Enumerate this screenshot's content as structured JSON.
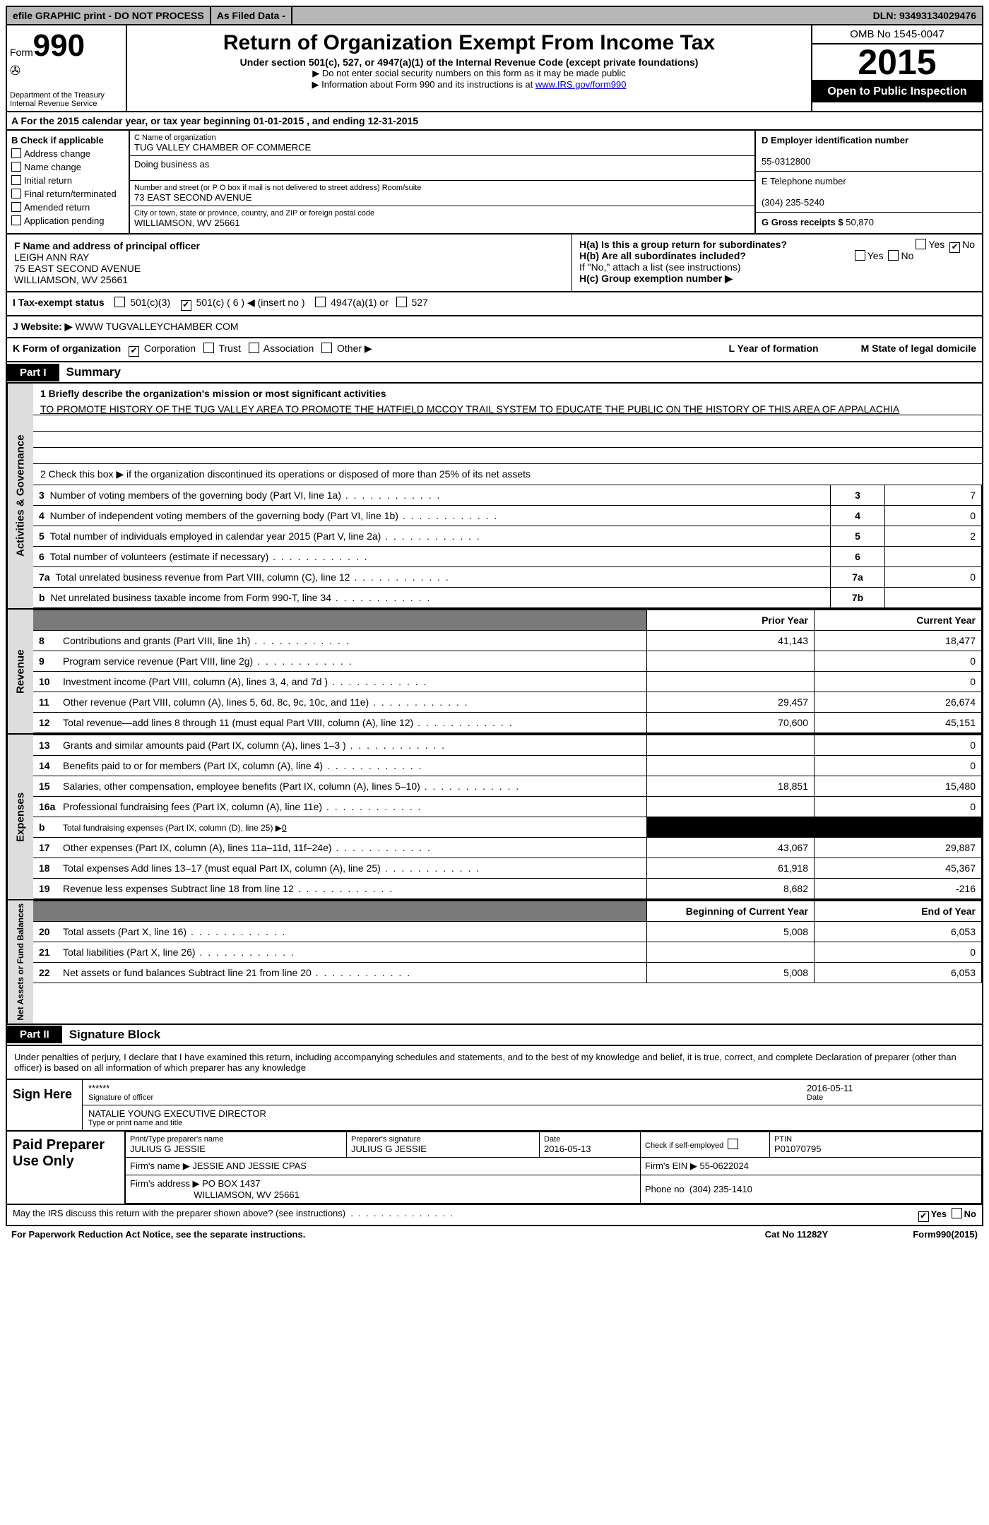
{
  "top": {
    "efile": "efile GRAPHIC print - DO NOT PROCESS",
    "asfiled": "As Filed Data -",
    "dln": "DLN: 93493134029476"
  },
  "header": {
    "form": "Form",
    "formno": "990",
    "agency1": "Department of the Treasury",
    "agency2": "Internal Revenue Service",
    "title": "Return of Organization Exempt From Income Tax",
    "sub": "Under section 501(c), 527, or 4947(a)(1) of the Internal Revenue Code (except private foundations)",
    "note1": "▶ Do not enter social security numbers on this form as it may be made public",
    "note2_pre": "▶ Information about Form 990 and its instructions is at ",
    "note2_link": "www.IRS.gov/form990",
    "omb": "OMB No  1545-0047",
    "year": "2015",
    "open": "Open to Public Inspection"
  },
  "rowA": {
    "text_pre": "A  For the 2015 calendar year, or tax year beginning ",
    "begin": "01-01-2015",
    "mid": " , and ending ",
    "end": "12-31-2015"
  },
  "B": {
    "hdr": "B Check if applicable",
    "items": [
      "Address change",
      "Name change",
      "Initial return",
      "Final return/terminated",
      "Amended return",
      "Application pending"
    ]
  },
  "C": {
    "name_lbl": "C Name of organization",
    "name": "TUG VALLEY CHAMBER OF COMMERCE",
    "dba_lbl": "Doing business as",
    "dba": "",
    "street_lbl": "Number and street (or P O  box if mail is not delivered to street address)  Room/suite",
    "street": "73 EAST SECOND AVENUE",
    "city_lbl": "City or town, state or province, country, and ZIP or foreign postal code",
    "city": "WILLIAMSON, WV  25661"
  },
  "D": {
    "ein_lbl": "D Employer identification number",
    "ein": "55-0312800",
    "tel_lbl": "E Telephone number",
    "tel": "(304) 235-5240",
    "gross_lbl": "G Gross receipts $",
    "gross": "50,870"
  },
  "F": {
    "lbl": "F    Name and address of principal officer",
    "l1": "LEIGH ANN RAY",
    "l2": "75 EAST SECOND AVENUE",
    "l3": "WILLIAMSON, WV  25661"
  },
  "H": {
    "ha": "H(a)  Is this a group return for subordinates?",
    "hb": "H(b)  Are all subordinates included?",
    "hnote": "If \"No,\" attach a list  (see instructions)",
    "hc": "H(c)   Group exemption number ▶"
  },
  "I": {
    "lbl": "I   Tax-exempt status",
    "o1": "501(c)(3)",
    "o2": "501(c) ( 6 ) ◀ (insert no )",
    "o3": "4947(a)(1) or",
    "o4": "527"
  },
  "J": {
    "lbl": "J  Website: ▶",
    "val": " WWW TUGVALLEYCHAMBER COM"
  },
  "K": {
    "lbl": "K Form of organization",
    "opts": [
      "Corporation",
      "Trust",
      "Association",
      "Other ▶"
    ],
    "L": "L Year of formation",
    "M": "M State of legal domicile"
  },
  "part1": {
    "tab": "Part I",
    "title": "Summary"
  },
  "actgov": {
    "side": "Activities & Governance",
    "q1": "1 Briefly describe the organization's mission or most significant activities",
    "mission": "TO PROMOTE HISTORY OF THE TUG VALLEY AREA  TO PROMOTE THE HATFIELD MCCOY TRAIL SYSTEM  TO EDUCATE THE PUBLIC ON THE HISTORY OF THIS AREA OF APPALACHIA",
    "q2": "2  Check this box ▶     if the organization discontinued its operations or disposed of more than 25% of its net assets",
    "rows": [
      {
        "n": "3",
        "t": "Number of voting members of the governing body (Part VI, line 1a)",
        "b": "3",
        "v": "7"
      },
      {
        "n": "4",
        "t": "Number of independent voting members of the governing body (Part VI, line 1b)",
        "b": "4",
        "v": "0"
      },
      {
        "n": "5",
        "t": "Total number of individuals employed in calendar year 2015 (Part V, line 2a)",
        "b": "5",
        "v": "2"
      },
      {
        "n": "6",
        "t": "Total number of volunteers (estimate if necessary)",
        "b": "6",
        "v": ""
      },
      {
        "n": "7a",
        "t": "Total unrelated business revenue from Part VIII, column (C), line 12",
        "b": "7a",
        "v": "0"
      },
      {
        "n": "b",
        "t": "Net unrelated business taxable income from Form 990-T, line 34",
        "b": "7b",
        "v": ""
      }
    ]
  },
  "revenue": {
    "side": "Revenue",
    "hdr_prior": "Prior Year",
    "hdr_curr": "Current Year",
    "rows": [
      {
        "n": "8",
        "t": "Contributions and grants (Part VIII, line 1h)",
        "p": "41,143",
        "c": "18,477"
      },
      {
        "n": "9",
        "t": "Program service revenue (Part VIII, line 2g)",
        "p": "",
        "c": "0"
      },
      {
        "n": "10",
        "t": "Investment income (Part VIII, column (A), lines 3, 4, and 7d )",
        "p": "",
        "c": "0"
      },
      {
        "n": "11",
        "t": "Other revenue (Part VIII, column (A), lines 5, 6d, 8c, 9c, 10c, and 11e)",
        "p": "29,457",
        "c": "26,674"
      },
      {
        "n": "12",
        "t": "Total revenue—add lines 8 through 11 (must equal Part VIII, column (A), line 12)",
        "p": "70,600",
        "c": "45,151"
      }
    ]
  },
  "expenses": {
    "side": "Expenses",
    "rows": [
      {
        "n": "13",
        "t": "Grants and similar amounts paid (Part IX, column (A), lines 1–3 )",
        "p": "",
        "c": "0"
      },
      {
        "n": "14",
        "t": "Benefits paid to or for members (Part IX, column (A), line 4)",
        "p": "",
        "c": "0"
      },
      {
        "n": "15",
        "t": "Salaries, other compensation, employee benefits (Part IX, column (A), lines 5–10)",
        "p": "18,851",
        "c": "15,480"
      },
      {
        "n": "16a",
        "t": "Professional fundraising fees (Part IX, column (A), line 11e)",
        "p": "",
        "c": "0"
      },
      {
        "n": "b",
        "t": "Total fundraising expenses (Part IX, column (D), line 25) ▶",
        "p": "BLACK",
        "c": "BLACK",
        "sub": "0"
      },
      {
        "n": "17",
        "t": "Other expenses (Part IX, column (A), lines 11a–11d, 11f–24e)",
        "p": "43,067",
        "c": "29,887"
      },
      {
        "n": "18",
        "t": "Total expenses  Add lines 13–17 (must equal Part IX, column (A), line 25)",
        "p": "61,918",
        "c": "45,367"
      },
      {
        "n": "19",
        "t": "Revenue less expenses  Subtract line 18 from line 12",
        "p": "8,682",
        "c": "-216"
      }
    ]
  },
  "netassets": {
    "side": "Net Assets or Fund Balances",
    "hdr_b": "Beginning of Current Year",
    "hdr_e": "End of Year",
    "rows": [
      {
        "n": "20",
        "t": "Total assets (Part X, line 16)",
        "p": "5,008",
        "c": "6,053"
      },
      {
        "n": "21",
        "t": "Total liabilities (Part X, line 26)",
        "p": "",
        "c": "0"
      },
      {
        "n": "22",
        "t": "Net assets or fund balances  Subtract line 21 from line 20",
        "p": "5,008",
        "c": "6,053"
      }
    ]
  },
  "part2": {
    "tab": "Part II",
    "title": "Signature Block"
  },
  "perjury": "Under penalties of perjury, I declare that I have examined this return, including accompanying schedules and statements, and to the best of my knowledge and belief, it is true, correct, and complete  Declaration of preparer (other than officer) is based on all information of which preparer has any knowledge",
  "sign": {
    "here": "Sign Here",
    "stars": "******",
    "sig_lbl": "Signature of officer",
    "date": "2016-05-11",
    "date_lbl": "Date",
    "name": "NATALIE YOUNG EXECUTIVE DIRECTOR",
    "name_lbl": "Type or print name and title"
  },
  "prep": {
    "here": "Paid Preparer Use Only",
    "name_lbl": "Print/Type preparer's name",
    "name": "JULIUS G JESSIE",
    "sig_lbl": "Preparer's signature",
    "sig": "JULIUS G JESSIE",
    "date_lbl": "Date",
    "date": "2016-05-13",
    "self_lbl": "Check       if self-employed",
    "ptin_lbl": "PTIN",
    "ptin": "P01070795",
    "firm_lbl": "Firm's name      ▶",
    "firm": "JESSIE AND JESSIE CPAS",
    "ein_lbl": "Firm's EIN ▶",
    "ein": "55-0622024",
    "addr_lbl": "Firm's address ▶",
    "addr": "PO BOX 1437",
    "addr2": "WILLIAMSON, WV  25661",
    "phone_lbl": "Phone no",
    "phone": "(304) 235-1410"
  },
  "footer": {
    "discuss": "May the IRS discuss this return with the preparer shown above? (see instructions)",
    "paperwork": "For Paperwork Reduction Act Notice, see the separate instructions.",
    "cat": "Cat No  11282Y",
    "form": "Form990(2015)"
  }
}
